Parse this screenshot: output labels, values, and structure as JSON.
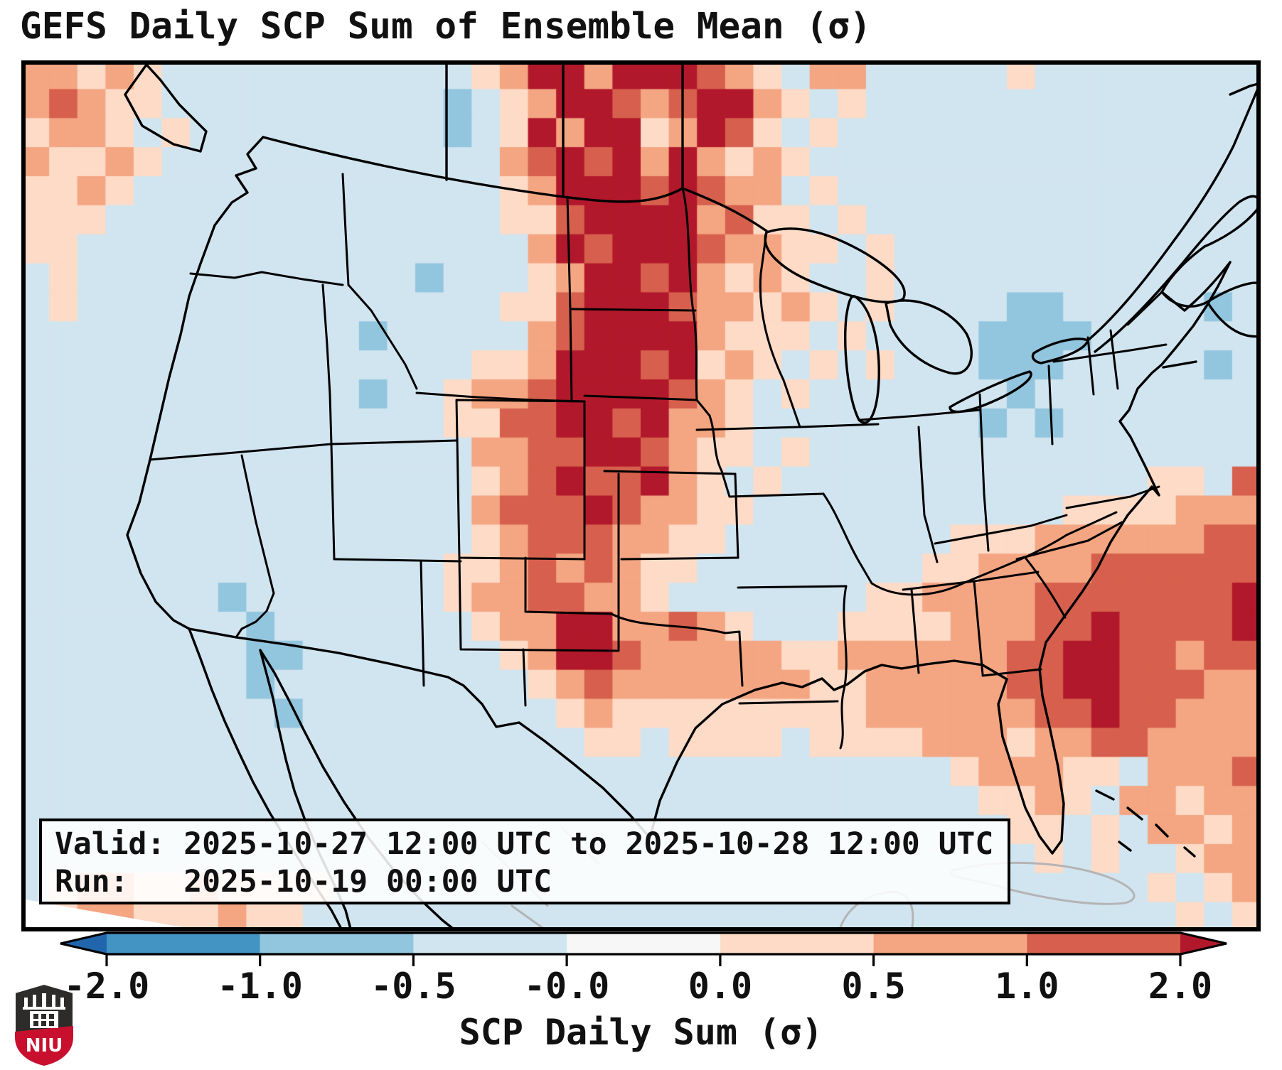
{
  "title": "GEFS Daily SCP Sum of Ensemble Mean (σ)",
  "info_box": {
    "line1": "Valid: 2025-10-27 12:00 UTC to 2025-10-28 12:00 UTC",
    "line2": "Run:   2025-10-19 00:00 UTC"
  },
  "colorbar": {
    "label": "SCP Daily Sum (σ)",
    "tick_labels": [
      "-2.0",
      "-1.0",
      "-0.5",
      "-0.0",
      "0.0",
      "0.5",
      "1.0",
      "2.0"
    ],
    "segment_colors": [
      "#4393c3",
      "#92c5de",
      "#d1e5f0",
      "#f7f7f7",
      "#fddbc7",
      "#f4a582",
      "#d6604d"
    ],
    "under_color": "#2166ac",
    "over_color": "#b2182b"
  },
  "logo": {
    "text": "NIU",
    "shield_dark": "#2d2c2a",
    "shield_red": "#c8102e"
  },
  "map": {
    "background": "#d1e5f0",
    "palette": {
      ".": "#d1e5f0",
      "b": "#92c5de",
      "B": "#4393c3",
      "w": "#f7f7f7",
      "1": "#fddbc7",
      "2": "#f4a582",
      "3": "#d6604d",
      "4": "#b2182b"
    },
    "grid_rows": [
      "22121...........12442444321.22.....1........",
      "23211..........b.12443234421.1..............",
      "1221.1.........b.1424412431.1...............",
      "21121............23434242121................",
      "1121.............1244434322.1...............",
      "111..............11344442311.1..............",
      "11................24344432211.1.............",
      ".1............b...1244342121..1.............",
      ".1...............113444322121.1....bb.....b.",
      "............b.....2344442111.1....bbbb......",
      "................11244434121.1.1...bbb.....b.",
      "............b..12234444321.1.......b........",
      "...............11334434221........b.b.......",
      "................2233443211.1................",
      "................123433421.1.............11.3",
      "................2333432211...........1111222",
      "................123332211........11122222233",
      "...............112323211........112222333333",
      ".......b.......12233221.......11222233333334",
      "........b.......1224422321...111122233433334",
      "........bb.......124432222211222222334433233",
      "........b.........12322222221122222334433322",
      ".........b.........1211111111122222233433222",
      "....................11.1111.1111222122332222",
      ".................................122211.2223",
      "..................................1121.22122",
      "...................................11.1.2212",
      "....................................1.1..122",
      ".1221121111.............................1.12",
      "w122111211...............................1.1"
    ]
  }
}
